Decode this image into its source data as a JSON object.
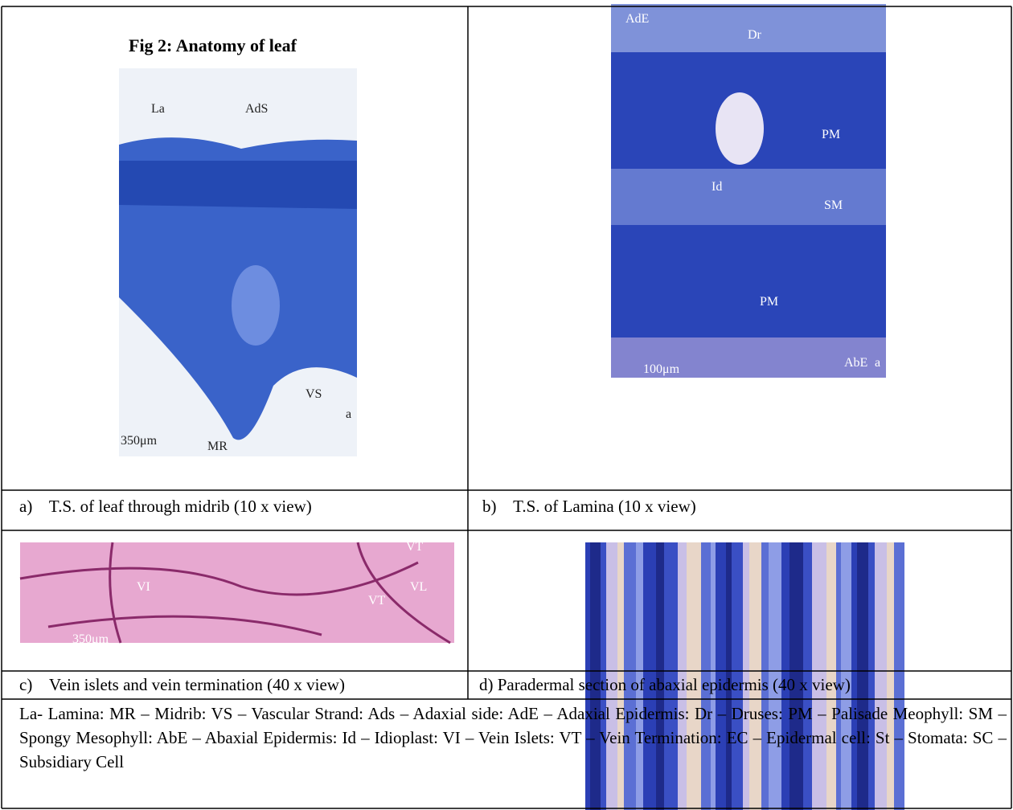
{
  "figure": {
    "title": "Fig 2: Anatomy of leaf",
    "panels": [
      {
        "caption": "a)    T.S. of leaf through midrib (10 x view)",
        "labels": [
          "La",
          "AdS",
          "VS",
          "MR",
          "a",
          "350μm"
        ]
      },
      {
        "caption": "b)    T.S. of Lamina (10 x view)",
        "labels": [
          "AdE",
          "Dr",
          "PM",
          "Id",
          "SM",
          "PM",
          "AbE",
          "a",
          "100μm"
        ]
      },
      {
        "caption": "c)    Vein islets and vein termination (40 x view)",
        "labels": [
          "VI",
          "VT",
          "VL",
          "VT",
          "350μm"
        ]
      },
      {
        "caption": "d) Paradermal section of abaxial epidermis (40 x view)"
      }
    ],
    "legend": "La- Lamina: MR – Midrib: VS – Vascular Strand: Ads – Adaxial side: AdE – Adaxial Epidermis: Dr – Druses: PM – Palisade Meophyll: SM – Spongy Mesophyll: AbE – Abaxial Epidermis: Id – Idioplast: VI – Vein Islets:  VT – Vein Termination: EC – Epidermal cell: St – Stomata:  SC – Subsidiary Cell"
  }
}
